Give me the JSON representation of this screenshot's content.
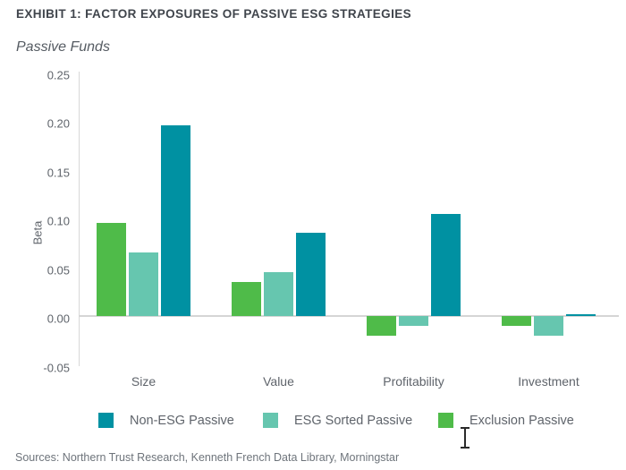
{
  "header": {
    "title": "EXHIBIT 1: FACTOR EXPOSURES OF PASSIVE ESG STRATEGIES",
    "subtitle": "Passive Funds"
  },
  "chart_data": {
    "type": "bar",
    "title": "Passive Funds",
    "xlabel": "",
    "ylabel": "Beta",
    "ylim": [
      -0.05,
      0.25
    ],
    "ytick_labels": [
      "0.25",
      "0.20",
      "0.15",
      "0.10",
      "0.05",
      "0.00",
      "-0.05"
    ],
    "grid": false,
    "legend_position": "bottom",
    "categories": [
      "Size",
      "Value",
      "Profitability",
      "Investment"
    ],
    "series": [
      {
        "name": "Non-ESG Passive",
        "color": "#0091A2",
        "values": [
          0.195,
          0.085,
          0.105,
          0.002
        ]
      },
      {
        "name": "ESG Sorted Passive",
        "color": "#66C6AF",
        "values": [
          0.065,
          0.045,
          -0.01,
          -0.02
        ]
      },
      {
        "name": "Exclusion Passive",
        "color": "#4FBB49",
        "values": [
          0.095,
          0.035,
          -0.02,
          -0.01
        ]
      }
    ],
    "bars_drawn_reverse_of_legend": true
  },
  "colors": {
    "axis_line": "#D8D8D8",
    "zero_line": "#D5D5D5",
    "label_text": "#5F646B",
    "title_text": "#40454C"
  },
  "cursor": {
    "type": "text-i-beam"
  },
  "footer": {
    "sources": "Sources: Northern Trust Research, Kenneth French Data Library, Morningstar"
  }
}
